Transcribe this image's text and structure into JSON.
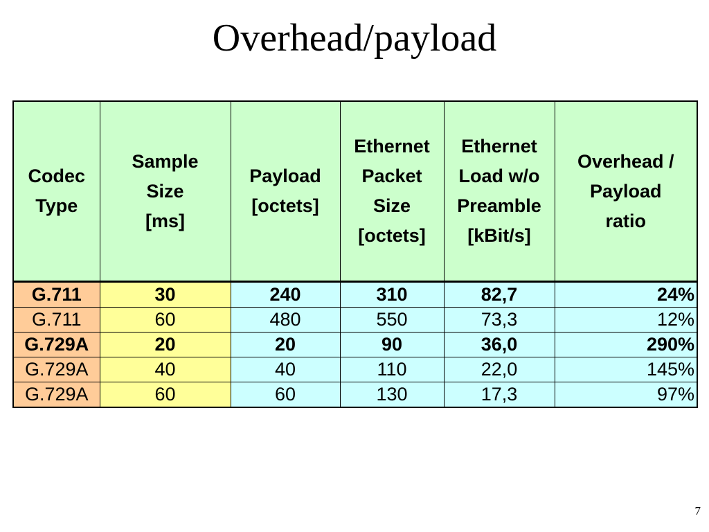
{
  "title": "Overhead/payload",
  "page_number": "7",
  "colors": {
    "header_bg": "#ccffcc",
    "codec_bg": "#ffcc99",
    "sample_bg": "#ffff99",
    "numeric_bg": "#ccffff"
  },
  "table": {
    "headers": [
      {
        "lines": [
          "Codec",
          "Type"
        ]
      },
      {
        "lines": [
          "Sample",
          "Size",
          "[ms]"
        ]
      },
      {
        "lines": [
          "Payload",
          "[octets]"
        ]
      },
      {
        "lines": [
          "Ethernet",
          "Packet",
          "Size",
          "[octets]"
        ]
      },
      {
        "lines": [
          "Ethernet",
          "Load w/o",
          "Preamble",
          "[kBit/s]"
        ]
      },
      {
        "lines": [
          "Overhead /",
          "Payload",
          "ratio"
        ]
      }
    ],
    "rows": [
      {
        "codec": "G.711",
        "sample": "30",
        "payload": "240",
        "packet": "310",
        "load": "82,7",
        "ratio": "24%",
        "bold": true
      },
      {
        "codec": "G.711",
        "sample": "60",
        "payload": "480",
        "packet": "550",
        "load": "73,3",
        "ratio": "12%",
        "bold": false
      },
      {
        "codec": "G.729A",
        "sample": "20",
        "payload": "20",
        "packet": "90",
        "load": "36,0",
        "ratio": "290%",
        "bold": true
      },
      {
        "codec": "G.729A",
        "sample": "40",
        "payload": "40",
        "packet": "110",
        "load": "22,0",
        "ratio": "145%",
        "bold": false
      },
      {
        "codec": "G.729A",
        "sample": "60",
        "payload": "60",
        "packet": "130",
        "load": "17,3",
        "ratio": "97%",
        "bold": false
      }
    ]
  }
}
